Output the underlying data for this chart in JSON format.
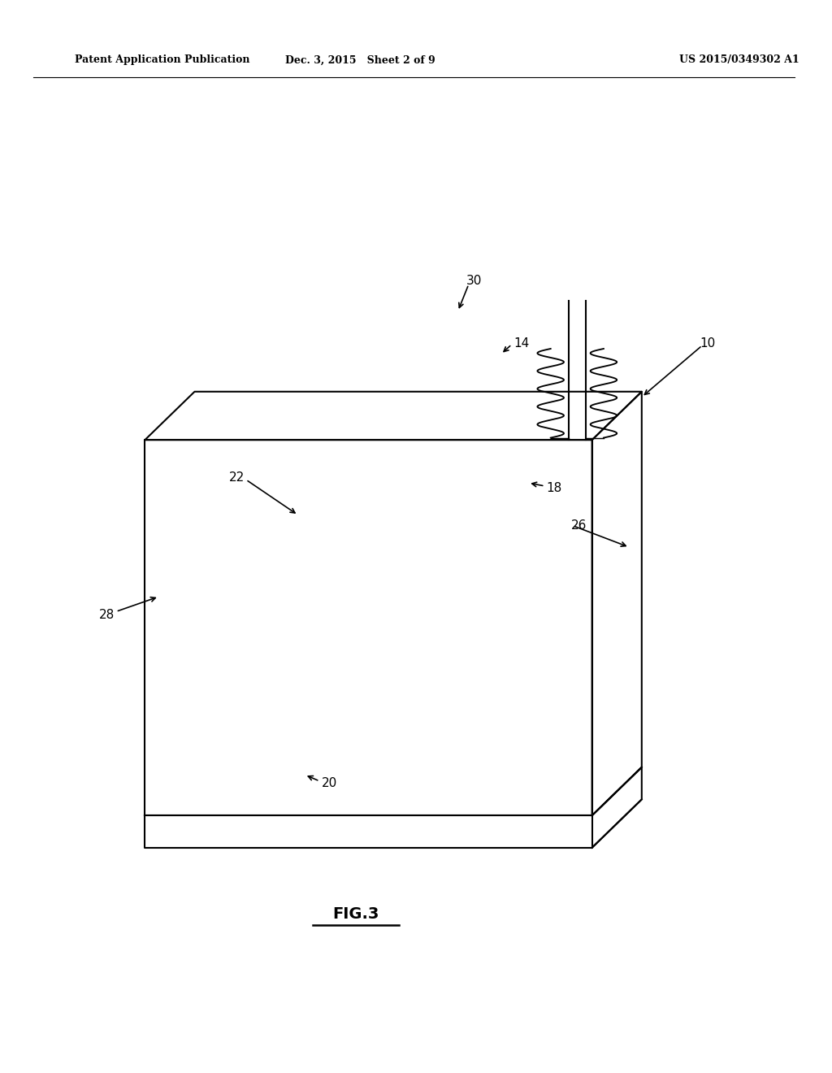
{
  "bg_color": "#ffffff",
  "line_color": "#000000",
  "header_left": "Patent Application Publication",
  "header_center": "Dec. 3, 2015   Sheet 2 of 9",
  "header_right": "US 2015/0349302 A1",
  "figure_label": "FIG.3"
}
